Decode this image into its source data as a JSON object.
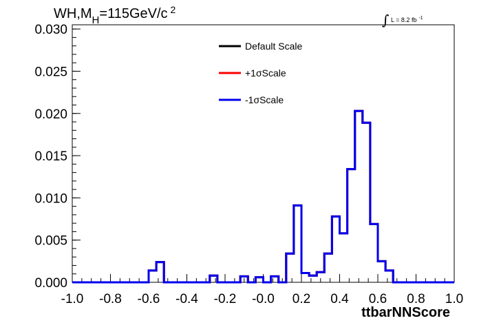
{
  "chart_data": {
    "type": "line",
    "title_main": "WH,M",
    "title_sub": "H",
    "title_rest": "=115GeV/c",
    "title_sup": "2",
    "lumi_text": "L = 8.2 fb",
    "lumi_sup": "-1",
    "integral_symbol": "∫",
    "xlabel": "ttbarNNScore",
    "xlim": [
      -1.0,
      1.0
    ],
    "ylim": [
      0.0,
      0.0305
    ],
    "x_ticks": [
      {
        "v": -1.0,
        "label": "-1.0"
      },
      {
        "v": -0.8,
        "label": "-0.8"
      },
      {
        "v": -0.6,
        "label": "-0.6"
      },
      {
        "v": -0.4,
        "label": "-0.4"
      },
      {
        "v": -0.2,
        "label": "-0.2"
      },
      {
        "v": 0.0,
        "label": "-0.0"
      },
      {
        "v": 0.2,
        "label": "0.2"
      },
      {
        "v": 0.4,
        "label": "0.4"
      },
      {
        "v": 0.6,
        "label": "0.6"
      },
      {
        "v": 0.8,
        "label": "0.8"
      },
      {
        "v": 1.0,
        "label": "1.0"
      }
    ],
    "y_ticks": [
      {
        "v": 0.0,
        "label": "0.000"
      },
      {
        "v": 0.005,
        "label": "0.005"
      },
      {
        "v": 0.01,
        "label": "0.010"
      },
      {
        "v": 0.015,
        "label": "0.015"
      },
      {
        "v": 0.02,
        "label": "0.020"
      },
      {
        "v": 0.025,
        "label": "0.025"
      },
      {
        "v": 0.03,
        "label": "0.030"
      }
    ],
    "bin_edges_start": -1.0,
    "bin_width": 0.04,
    "series": [
      {
        "name": "Default Scale",
        "color": "#000000"
      },
      {
        "name": "+1σScale",
        "color": "#ff0000"
      },
      {
        "name": "-1σScale",
        "color": "#0000ee"
      }
    ],
    "values": [
      0,
      0,
      0,
      0,
      0,
      0,
      0,
      0,
      0,
      0,
      0.0014,
      0.0024,
      0,
      0,
      0,
      0,
      0,
      0,
      0.0008,
      0,
      0,
      0,
      0.0007,
      0,
      0.0006,
      0,
      0.0007,
      0,
      0.0034,
      0.0091,
      0.0011,
      0.0008,
      0.0012,
      0.0034,
      0.0078,
      0.0058,
      0.0134,
      0.0203,
      0.0189,
      0.0069,
      0.0025,
      0.0014,
      0,
      0,
      0,
      0,
      0,
      0,
      0,
      0
    ]
  }
}
